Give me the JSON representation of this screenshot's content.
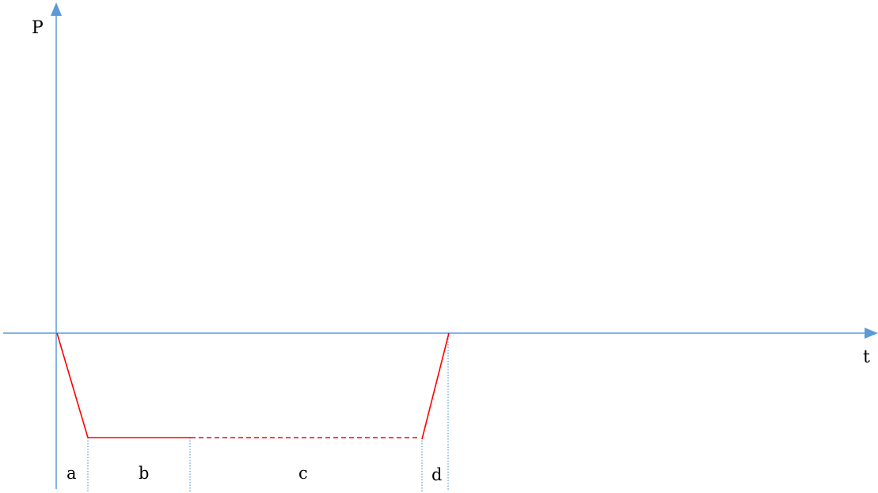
{
  "colors": {
    "axis": "#5b9bd5",
    "curve": "#ff0000",
    "divider": "#5b9bd5",
    "text": "#000000"
  },
  "labels": {
    "y_axis": "P",
    "x_axis": "t"
  },
  "segments": [
    {
      "id": "a",
      "label": "a",
      "style": "solid",
      "shape": "falling-ramp"
    },
    {
      "id": "b",
      "label": "b",
      "style": "solid",
      "shape": "flat"
    },
    {
      "id": "c",
      "label": "c",
      "style": "dashed",
      "shape": "flat"
    },
    {
      "id": "d",
      "label": "d",
      "style": "solid",
      "shape": "rising-ramp"
    }
  ]
}
